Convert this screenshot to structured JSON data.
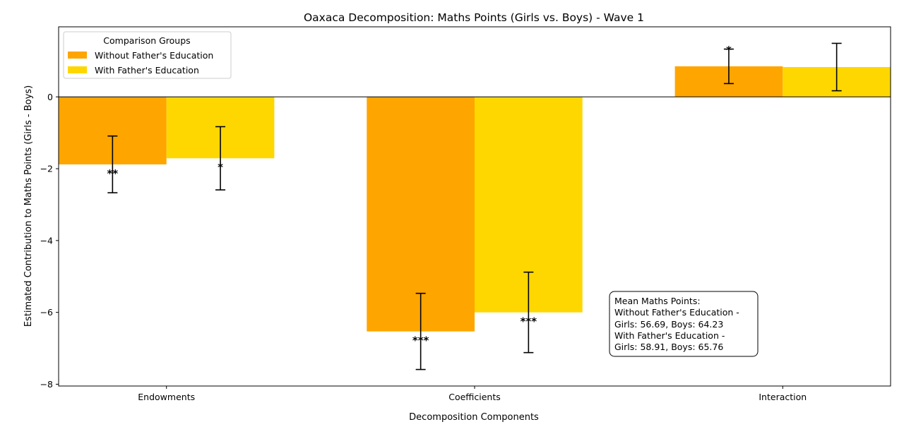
{
  "chart_data": {
    "type": "bar",
    "title": "Oaxaca Decomposition: Maths Points (Girls vs. Boys) - Wave 1",
    "xlabel": "Decomposition Components",
    "ylabel": "Estimated Contribution to Maths Points (Girls - Boys)",
    "categories": [
      "Endowments",
      "Coefficients",
      "Interaction"
    ],
    "ylim": [
      -8.05,
      1.95
    ],
    "yticks": [
      -8,
      -6,
      -4,
      -2,
      0
    ],
    "ytick_labels": [
      "−8",
      "−6",
      "−4",
      "−2",
      "0"
    ],
    "grid": false,
    "zero_line": true,
    "legend": {
      "title": "Comparison Groups",
      "placement": "top-left"
    },
    "series": [
      {
        "name": "Without Father's Education",
        "color": "#FFA500",
        "values": [
          -1.88,
          -6.53,
          0.85
        ],
        "errors": [
          0.79,
          1.06,
          0.48
        ],
        "significance": [
          "**",
          "***",
          "*"
        ]
      },
      {
        "name": "With Father's Education",
        "color": "#FFD700",
        "values": [
          -1.71,
          -6.0,
          0.83
        ],
        "errors": [
          0.88,
          1.12,
          0.66
        ],
        "significance": [
          "*",
          "***",
          ""
        ]
      }
    ],
    "annotation": {
      "lines": [
        "Mean Maths Points:",
        "Without Father's Education -",
        "Girls: 56.69, Boys: 64.23",
        "With Father's Education -",
        "Girls: 58.91, Boys: 65.76"
      ]
    }
  }
}
